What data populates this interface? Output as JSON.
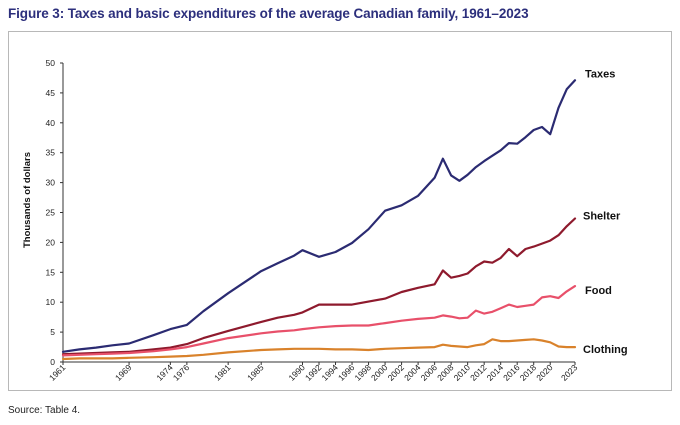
{
  "figure": {
    "title": "Figure 3: Taxes and basic expenditures of the average Canadian family, 1961–2023",
    "source": "Source: Table 4."
  },
  "chart_data": {
    "type": "line",
    "title": "Figure 3: Taxes and basic expenditures of the average Canadian family, 1961–2023",
    "xlabel": "",
    "ylabel": "Thousands of dollars",
    "ylim": [
      0,
      50
    ],
    "yticks": [
      0,
      5,
      10,
      15,
      20,
      25,
      30,
      35,
      40,
      45,
      50
    ],
    "xlim": [
      1961,
      2023
    ],
    "xticks": [
      1961,
      1969,
      1974,
      1976,
      1981,
      1985,
      1990,
      1992,
      1994,
      1996,
      1998,
      2000,
      2002,
      2004,
      2006,
      2008,
      2010,
      2012,
      2014,
      2016,
      2018,
      2020,
      2023
    ],
    "grid": false,
    "legend": "inline labels at right end of each series",
    "x": [
      1961,
      1963,
      1965,
      1967,
      1969,
      1972,
      1974,
      1976,
      1978,
      1981,
      1985,
      1987,
      1989,
      1990,
      1992,
      1994,
      1996,
      1998,
      2000,
      2002,
      2004,
      2006,
      2007,
      2008,
      2009,
      2010,
      2011,
      2012,
      2013,
      2014,
      2015,
      2016,
      2017,
      2018,
      2019,
      2020,
      2021,
      2022,
      2023
    ],
    "series": [
      {
        "name": "Taxes",
        "color": "#2b2b72",
        "values": [
          1.7,
          2.1,
          2.4,
          2.8,
          3.1,
          4.5,
          5.5,
          6.2,
          8.5,
          11.5,
          15.2,
          16.5,
          17.8,
          18.7,
          17.6,
          18.4,
          19.9,
          22.2,
          25.3,
          26.2,
          27.8,
          30.8,
          34.0,
          31.2,
          30.3,
          31.3,
          32.6,
          33.6,
          34.5,
          35.4,
          36.6,
          36.5,
          37.6,
          38.8,
          39.3,
          38.1,
          42.5,
          45.6,
          47.1
        ]
      },
      {
        "name": "Shelter",
        "color": "#8e1a2d",
        "values": [
          1.3,
          1.4,
          1.5,
          1.6,
          1.7,
          2.1,
          2.4,
          3.0,
          4.0,
          5.2,
          6.7,
          7.4,
          7.9,
          8.3,
          9.6,
          9.6,
          9.6,
          10.1,
          10.6,
          11.7,
          12.4,
          13.0,
          15.3,
          14.1,
          14.4,
          14.8,
          16.0,
          16.8,
          16.6,
          17.4,
          18.9,
          17.7,
          18.9,
          19.3,
          19.8,
          20.3,
          21.2,
          22.7,
          24.0
        ]
      },
      {
        "name": "Food",
        "color": "#e8506a",
        "values": [
          1.1,
          1.2,
          1.3,
          1.4,
          1.5,
          1.8,
          2.1,
          2.5,
          3.1,
          4.0,
          4.8,
          5.1,
          5.3,
          5.5,
          5.8,
          6.0,
          6.1,
          6.1,
          6.5,
          6.9,
          7.2,
          7.4,
          7.8,
          7.6,
          7.3,
          7.4,
          8.6,
          8.1,
          8.4,
          9.0,
          9.6,
          9.2,
          9.4,
          9.6,
          10.8,
          11.0,
          10.7,
          11.8,
          12.7
        ]
      },
      {
        "name": "Clothing",
        "color": "#d9822b",
        "values": [
          0.5,
          0.6,
          0.6,
          0.6,
          0.7,
          0.8,
          0.9,
          1.0,
          1.2,
          1.6,
          2.0,
          2.1,
          2.2,
          2.2,
          2.2,
          2.1,
          2.1,
          2.0,
          2.2,
          2.3,
          2.4,
          2.5,
          2.9,
          2.7,
          2.6,
          2.5,
          2.8,
          3.0,
          3.8,
          3.5,
          3.5,
          3.6,
          3.7,
          3.8,
          3.6,
          3.3,
          2.6,
          2.5,
          2.5
        ]
      }
    ]
  }
}
